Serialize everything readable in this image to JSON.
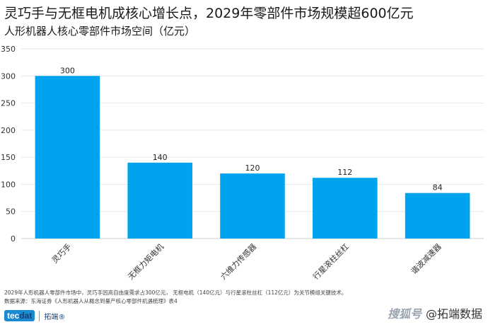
{
  "title": "灵巧手与无框电机成核心增长点，2029年零部件市场规模超600亿元",
  "subtitle": "人形机器人核心零部件市场空间（亿元）",
  "chart_data": {
    "type": "bar",
    "categories": [
      "灵巧手",
      "无框力矩电机",
      "六维力传感器",
      "行星滚柱丝杠",
      "谐波减速器"
    ],
    "values": [
      300,
      140,
      120,
      112,
      84
    ],
    "ylim": [
      0,
      350
    ],
    "yticks": [
      0,
      50,
      100,
      150,
      200,
      250,
      300,
      350
    ],
    "grid": true,
    "bar_color": "#00a3ee"
  },
  "notes": [
    "2029年人形机器人零部件市场中，灵巧手因高自由度需求占300亿元， 无框电机（140亿元）与行星滚柱丝杠（112亿元）为关节模组关键技术。",
    "数据来源：东海证券《人形机器人从概念到量产核心零部件机遇梳理》表4"
  ],
  "brand": {
    "logo_tec": "tec",
    "logo_dat": "dat",
    "logo_sub": "拓端®",
    "watermark_left": "搜狐号",
    "watermark_right": "@拓端数据"
  }
}
